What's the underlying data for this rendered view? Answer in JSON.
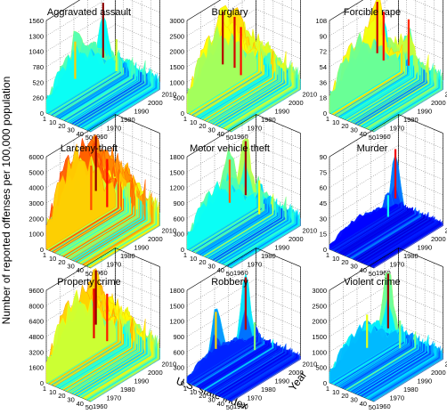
{
  "figure": {
    "ylabel": "Number of reported offenses per 100,000 population",
    "xlabel": "U.S. state index",
    "zlabel": "Year"
  },
  "chart_data": [
    {
      "type": "surface",
      "title": "Aggravated assault",
      "x_axis": {
        "label": "U.S. state index",
        "ticks": [
          1,
          10,
          20,
          30,
          40,
          50
        ]
      },
      "y_axis": {
        "label": "Year",
        "ticks": [
          1960,
          1970,
          1980,
          1990,
          2000,
          2010
        ]
      },
      "z_axis": {
        "ticks": [
          0,
          260,
          520,
          780,
          1040,
          1300,
          1560
        ]
      },
      "zlim": [
        0,
        1560
      ],
      "typical_level": 520,
      "peaks": [
        {
          "state_index": 18,
          "year": 1990,
          "value": 1540
        },
        {
          "state_index": 10,
          "year": 1975,
          "value": 1050
        },
        {
          "state_index": 25,
          "year": 1995,
          "value": 900
        }
      ]
    },
    {
      "type": "surface",
      "title": "Burglary",
      "x_axis": {
        "label": "U.S. state index",
        "ticks": [
          1,
          10,
          20,
          30,
          40,
          50
        ]
      },
      "y_axis": {
        "label": "Year",
        "ticks": [
          1960,
          1970,
          1980,
          1990,
          2000,
          2010
        ]
      },
      "z_axis": {
        "ticks": [
          0,
          500,
          1000,
          1500,
          2000,
          2500,
          3000
        ]
      },
      "zlim": [
        0,
        3000
      ],
      "typical_level": 1400,
      "peaks": [
        {
          "state_index": 10,
          "year": 1980,
          "value": 2850
        },
        {
          "state_index": 20,
          "year": 1982,
          "value": 2750
        },
        {
          "state_index": 30,
          "year": 1980,
          "value": 2600
        }
      ]
    },
    {
      "type": "surface",
      "title": "Forcible rape",
      "x_axis": {
        "label": "U.S. state index",
        "ticks": [
          1,
          10,
          20,
          30,
          40,
          50
        ]
      },
      "y_axis": {
        "label": "Year",
        "ticks": [
          1960,
          1970,
          1980,
          1990,
          2000,
          2010
        ]
      },
      "z_axis": {
        "ticks": [
          0,
          18,
          36,
          54,
          72,
          90,
          108
        ]
      },
      "zlim": [
        0,
        108
      ],
      "typical_level": 45,
      "peaks": [
        {
          "state_index": 5,
          "year": 1992,
          "value": 100
        },
        {
          "state_index": 15,
          "year": 1990,
          "value": 95
        },
        {
          "state_index": 35,
          "year": 1995,
          "value": 90
        }
      ]
    },
    {
      "type": "surface",
      "title": "Larceny-theft",
      "x_axis": {
        "label": "U.S. state index",
        "ticks": [
          1,
          10,
          20,
          30,
          40,
          50
        ]
      },
      "y_axis": {
        "label": "Year",
        "ticks": [
          1960,
          1970,
          1980,
          1990,
          2000,
          2010
        ]
      },
      "z_axis": {
        "ticks": [
          0,
          1000,
          2000,
          3000,
          4000,
          5000,
          6000
        ]
      },
      "zlim": [
        0,
        6000
      ],
      "typical_level": 3500,
      "peaks": [
        {
          "state_index": 10,
          "year": 1990,
          "value": 5900
        },
        {
          "state_index": 30,
          "year": 1985,
          "value": 5200
        },
        {
          "state_index": 20,
          "year": 1980,
          "value": 4800
        }
      ]
    },
    {
      "type": "surface",
      "title": "Motor vehicle theft",
      "x_axis": {
        "label": "U.S. state index",
        "ticks": [
          1,
          10,
          20,
          30,
          40,
          50
        ]
      },
      "y_axis": {
        "label": "Year",
        "ticks": [
          1960,
          1970,
          1980,
          1990,
          2000,
          2010
        ]
      },
      "z_axis": {
        "ticks": [
          0,
          300,
          600,
          900,
          1200,
          1500,
          1800
        ]
      },
      "zlim": [
        0,
        1800
      ],
      "typical_level": 600,
      "peaks": [
        {
          "state_index": 20,
          "year": 1990,
          "value": 1750
        },
        {
          "state_index": 10,
          "year": 1985,
          "value": 1400
        },
        {
          "state_index": 35,
          "year": 1990,
          "value": 1100
        }
      ]
    },
    {
      "type": "surface",
      "title": "Murder",
      "x_axis": {
        "label": "U.S. state index",
        "ticks": [
          1,
          10,
          20,
          30,
          40,
          50
        ]
      },
      "y_axis": {
        "label": "Year",
        "ticks": [
          1960,
          1970,
          1980,
          1990,
          2000,
          2010
        ]
      },
      "z_axis": {
        "ticks": [
          0,
          15,
          30,
          45,
          60,
          75,
          90
        ]
      },
      "zlim": [
        0,
        90
      ],
      "typical_level": 10,
      "peaks": [
        {
          "state_index": 25,
          "year": 1992,
          "value": 80
        },
        {
          "state_index": 20,
          "year": 1990,
          "value": 35
        }
      ]
    },
    {
      "type": "surface",
      "title": "Property crime",
      "x_axis": {
        "label": "U.S. state index",
        "ticks": [
          1,
          10,
          20,
          30,
          40,
          50
        ]
      },
      "y_axis": {
        "label": "Year",
        "ticks": [
          1960,
          1970,
          1980,
          1990,
          2000,
          2010
        ]
      },
      "z_axis": {
        "ticks": [
          0,
          1600,
          3200,
          4800,
          6400,
          8000,
          9600
        ]
      },
      "zlim": [
        0,
        9600
      ],
      "typical_level": 4800,
      "peaks": [
        {
          "state_index": 10,
          "year": 1990,
          "value": 9400
        },
        {
          "state_index": 20,
          "year": 1982,
          "value": 8600
        },
        {
          "state_index": 30,
          "year": 1985,
          "value": 8200
        }
      ]
    },
    {
      "type": "surface",
      "title": "Robbery",
      "x_axis": {
        "label": "U.S. state index",
        "ticks": [
          1,
          10,
          20,
          30,
          40,
          50
        ]
      },
      "y_axis": {
        "label": "Year",
        "ticks": [
          1960,
          1970,
          1980,
          1990,
          2000,
          2010
        ]
      },
      "z_axis": {
        "ticks": [
          0,
          300,
          600,
          900,
          1200,
          1500,
          1800
        ]
      },
      "zlim": [
        0,
        1800
      ],
      "typical_level": 250,
      "peaks": [
        {
          "state_index": 20,
          "year": 1990,
          "value": 1700
        },
        {
          "state_index": 10,
          "year": 1975,
          "value": 1200
        },
        {
          "state_index": 30,
          "year": 1990,
          "value": 900
        }
      ]
    },
    {
      "type": "surface",
      "title": "Violent crime",
      "x_axis": {
        "label": "U.S. state index",
        "ticks": [
          1,
          10,
          20,
          30,
          40,
          50
        ]
      },
      "y_axis": {
        "label": "Year",
        "ticks": [
          1960,
          1970,
          1980,
          1990,
          2000,
          2010
        ]
      },
      "z_axis": {
        "ticks": [
          0,
          500,
          1000,
          1500,
          2000,
          2500,
          3000
        ]
      },
      "zlim": [
        0,
        3000
      ],
      "typical_level": 800,
      "peaks": [
        {
          "state_index": 20,
          "year": 1990,
          "value": 2950
        },
        {
          "state_index": 12,
          "year": 1980,
          "value": 1800
        },
        {
          "state_index": 30,
          "year": 1992,
          "value": 1500
        }
      ]
    }
  ]
}
